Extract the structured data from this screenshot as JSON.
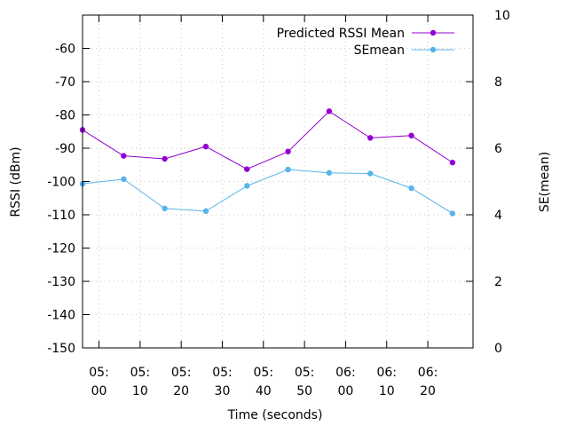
{
  "chart_data": {
    "type": "line",
    "xlabel": "Time (seconds)",
    "ylabel_left": "RSSI (dBm)",
    "ylabel_right": "SE(mean)",
    "x_ticks": [
      {
        "t": 300,
        "l1": "05:",
        "l2": "00"
      },
      {
        "t": 310,
        "l1": "05:",
        "l2": "10"
      },
      {
        "t": 320,
        "l1": "05:",
        "l2": "20"
      },
      {
        "t": 330,
        "l1": "05:",
        "l2": "30"
      },
      {
        "t": 340,
        "l1": "05:",
        "l2": "40"
      },
      {
        "t": 350,
        "l1": "05:",
        "l2": "50"
      },
      {
        "t": 360,
        "l1": "06:",
        "l2": "00"
      },
      {
        "t": 370,
        "l1": "06:",
        "l2": "10"
      },
      {
        "t": 380,
        "l1": "06:",
        "l2": "20"
      }
    ],
    "xlim": [
      296,
      391
    ],
    "ylim_left": [
      -150,
      -50
    ],
    "ylim_right": [
      0,
      10
    ],
    "y_left_ticks": [
      -60,
      -70,
      -80,
      -90,
      -100,
      -110,
      -120,
      -130,
      -140,
      -150
    ],
    "y_right_ticks": [
      10,
      8,
      6,
      4,
      2,
      0
    ],
    "grid": true,
    "legend_position": "top-right",
    "series": [
      {
        "name": "Predicted RSSI Mean",
        "axis": "left",
        "color": "#9400d3",
        "x": [
          296,
          306,
          316,
          326,
          336,
          346,
          356,
          366,
          376,
          386
        ],
        "y": [
          -84.5,
          -92.3,
          -93.2,
          -89.5,
          -96.3,
          -91.0,
          -78.9,
          -86.9,
          -86.2,
          -94.3
        ]
      },
      {
        "name": "SEmean",
        "axis": "right",
        "color": "#56b4e9",
        "x": [
          296,
          306,
          316,
          326,
          336,
          346,
          356,
          366,
          376,
          386
        ],
        "y": [
          4.93,
          5.07,
          4.19,
          4.11,
          4.87,
          5.36,
          5.26,
          5.24,
          4.8,
          4.04
        ]
      }
    ]
  }
}
